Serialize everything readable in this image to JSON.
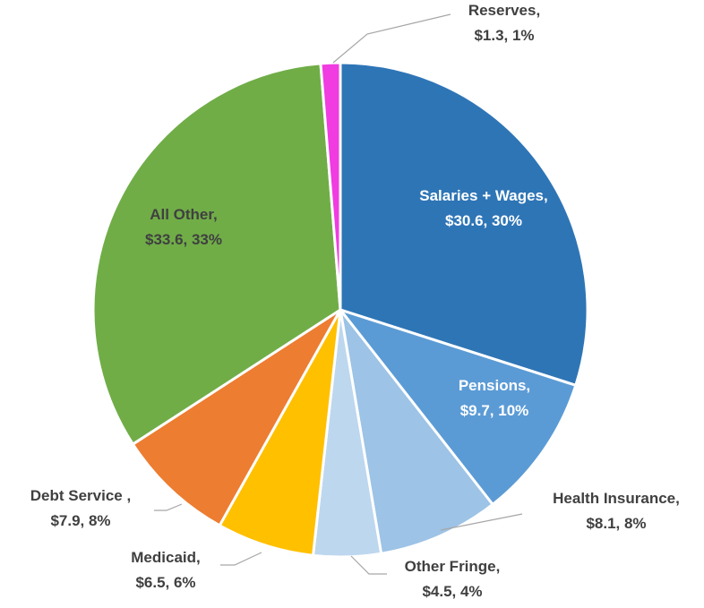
{
  "chart_data": {
    "type": "pie",
    "categories": [
      "Salaries + Wages,",
      "Pensions,",
      "Health Insurance,",
      "Other Fringe,",
      "Medicaid,",
      "Debt Service ,",
      "All Other,",
      "Reserves,"
    ],
    "values": [
      30.6,
      9.7,
      8.1,
      4.5,
      6.5,
      7.9,
      33.6,
      1.3
    ],
    "value_labels": [
      "$30.6, 30%",
      "$9.7, 10%",
      "$8.1, 8%",
      "$4.5, 4%",
      "$6.5, 6%",
      "$7.9, 8%",
      "$33.6, 33%",
      "$1.3, 1%"
    ],
    "colors": [
      "#2e75b6",
      "#5b9bd5",
      "#9dc3e6",
      "#bdd7ee",
      "#ffc000",
      "#ed7d31",
      "#70ad47",
      "#f03ce0"
    ]
  }
}
